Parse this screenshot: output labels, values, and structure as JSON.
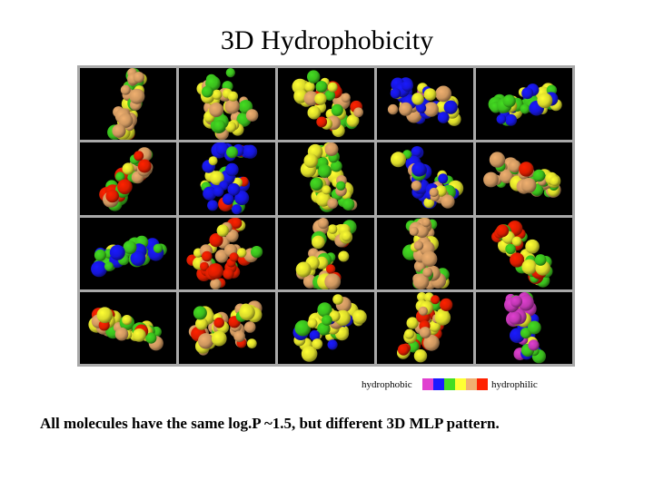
{
  "title": "3D Hydrophobicity",
  "legend": {
    "left_label": "hydrophobic",
    "right_label": "hydrophilic",
    "colors": [
      "#e040d0",
      "#1a1aff",
      "#44dd22",
      "#ffff33",
      "#f0b070",
      "#ff2200"
    ]
  },
  "caption": "All molecules have the same log.P ~1.5, but different 3D MLP pattern.",
  "molecules": [
    {
      "name": "molecule-1-1",
      "palette": [
        "#f0b070",
        "#ffff33",
        "#44dd22",
        "#ff2200"
      ]
    },
    {
      "name": "molecule-1-2",
      "palette": [
        "#ffff33",
        "#44dd22",
        "#f0b070"
      ]
    },
    {
      "name": "molecule-1-3",
      "palette": [
        "#ffff33",
        "#f0b070",
        "#ff2200",
        "#44dd22"
      ]
    },
    {
      "name": "molecule-1-4",
      "palette": [
        "#1a1aff",
        "#ffff33",
        "#f0b070",
        "#44dd22",
        "#e040d0"
      ]
    },
    {
      "name": "molecule-1-5",
      "palette": [
        "#44dd22",
        "#1a1aff",
        "#ffff33"
      ]
    },
    {
      "name": "molecule-2-1",
      "palette": [
        "#44dd22",
        "#f0b070",
        "#ff2200",
        "#ffff33"
      ]
    },
    {
      "name": "molecule-2-2",
      "palette": [
        "#1a1aff",
        "#44dd22",
        "#ffff33",
        "#ff2200"
      ]
    },
    {
      "name": "molecule-2-3",
      "palette": [
        "#44dd22",
        "#f0b070",
        "#ffff33"
      ]
    },
    {
      "name": "molecule-2-4",
      "palette": [
        "#1a1aff",
        "#ffff33",
        "#f0b070",
        "#44dd22"
      ]
    },
    {
      "name": "molecule-2-5",
      "palette": [
        "#f0b070",
        "#ffff33",
        "#44dd22",
        "#ff2200"
      ]
    },
    {
      "name": "molecule-3-1",
      "palette": [
        "#44dd22",
        "#1a1aff",
        "#ffff33"
      ]
    },
    {
      "name": "molecule-3-2",
      "palette": [
        "#ff2200",
        "#f0b070",
        "#ffff33",
        "#44dd22"
      ]
    },
    {
      "name": "molecule-3-3",
      "palette": [
        "#ffff33",
        "#f0b070",
        "#44dd22",
        "#ff2200"
      ]
    },
    {
      "name": "molecule-3-4",
      "palette": [
        "#f0b070",
        "#ffff33",
        "#44dd22"
      ]
    },
    {
      "name": "molecule-3-5",
      "palette": [
        "#44dd22",
        "#ffff33",
        "#ff2200"
      ]
    },
    {
      "name": "molecule-4-1",
      "palette": [
        "#ffff33",
        "#f0b070",
        "#44dd22",
        "#ff2200"
      ]
    },
    {
      "name": "molecule-4-2",
      "palette": [
        "#ffff33",
        "#f0b070",
        "#ff2200",
        "#44dd22"
      ]
    },
    {
      "name": "molecule-4-3",
      "palette": [
        "#ffff33",
        "#44dd22",
        "#1a1aff",
        "#f0b070"
      ]
    },
    {
      "name": "molecule-4-4",
      "palette": [
        "#ffff33",
        "#44dd22",
        "#ff2200",
        "#f0b070"
      ]
    },
    {
      "name": "molecule-4-5",
      "palette": [
        "#e040d0",
        "#1a1aff",
        "#44dd22",
        "#ffff33"
      ]
    }
  ]
}
